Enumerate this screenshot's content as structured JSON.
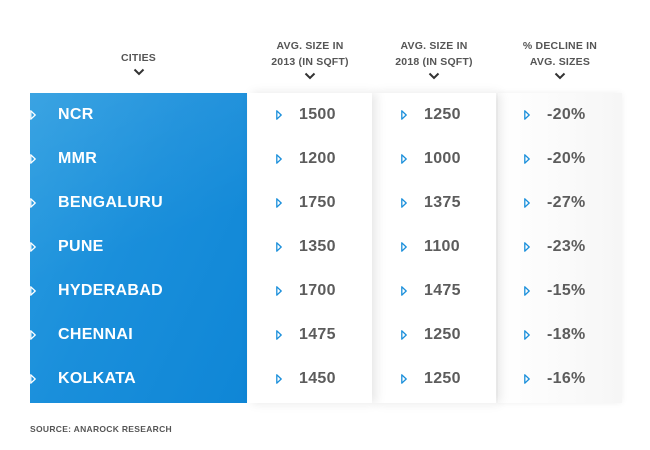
{
  "headers": {
    "cities": "CITIES",
    "size_2013_line1": "AVG. SIZE IN",
    "size_2013_line2": "2013 (IN SQFT)",
    "size_2018_line1": "AVG. SIZE IN",
    "size_2018_line2": "2018 (IN SQFT)",
    "decline_line1": "% DECLINE IN",
    "decline_line2": "AVG. SIZES"
  },
  "rows": [
    {
      "city": "NCR",
      "size_2013": "1500",
      "size_2018": "1250",
      "decline": "-20%"
    },
    {
      "city": "MMR",
      "size_2013": "1200",
      "size_2018": "1000",
      "decline": "-20%"
    },
    {
      "city": "BENGALURU",
      "size_2013": "1750",
      "size_2018": "1375",
      "decline": "-27%"
    },
    {
      "city": "PUNE",
      "size_2013": "1350",
      "size_2018": "1100",
      "decline": "-23%"
    },
    {
      "city": "HYDERABAD",
      "size_2013": "1700",
      "size_2018": "1475",
      "decline": "-15%"
    },
    {
      "city": "CHENNAI",
      "size_2013": "1475",
      "size_2018": "1250",
      "decline": "-18%"
    },
    {
      "city": "KOLKATA",
      "size_2013": "1450",
      "size_2018": "1250",
      "decline": "-16%"
    }
  ],
  "source": "SOURCE: ANAROCK RESEARCH",
  "icons": {
    "header_marker": "chevron-down-icon",
    "row_marker": "triangle-right-icon"
  },
  "colors": {
    "cities_panel": "#1a8fdb",
    "value_text": "#5c5c5c",
    "arrow_on_blue": "#ffffff",
    "arrow_on_white": "#1a8fdb"
  }
}
